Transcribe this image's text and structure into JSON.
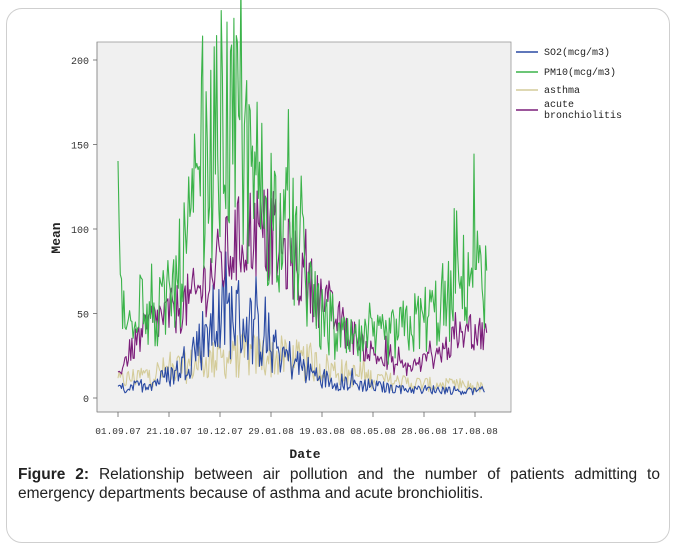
{
  "chart_data": {
    "type": "line",
    "xlabel": "Date",
    "ylabel": "Mean",
    "ylim": [
      -5,
      210
    ],
    "yticks": [
      0,
      50,
      100,
      150,
      200
    ],
    "xticks": [
      "01.09.07",
      "21.10.07",
      "10.12.07",
      "29.01.08",
      "19.03.08",
      "08.05.08",
      "28.06.08",
      "17.08.08"
    ],
    "x_range_days": [
      0,
      385
    ],
    "legend_position": "right",
    "grid": false,
    "series": [
      {
        "name": "SO2(mcg/m3)",
        "color": "#2a4aa3",
        "keypoints": [
          [
            0,
            5
          ],
          [
            20,
            7
          ],
          [
            40,
            10
          ],
          [
            60,
            15
          ],
          [
            80,
            30
          ],
          [
            100,
            45
          ],
          [
            120,
            50
          ],
          [
            140,
            40
          ],
          [
            160,
            30
          ],
          [
            180,
            22
          ],
          [
            200,
            15
          ],
          [
            220,
            10
          ],
          [
            250,
            8
          ],
          [
            280,
            6
          ],
          [
            310,
            5
          ],
          [
            340,
            5
          ],
          [
            360,
            4
          ],
          [
            380,
            4
          ]
        ]
      },
      {
        "name": "PM10(mcg/m3)",
        "color": "#3bb34a",
        "keypoints": [
          [
            0,
            120
          ],
          [
            4,
            60
          ],
          [
            8,
            35
          ],
          [
            15,
            55
          ],
          [
            25,
            70
          ],
          [
            35,
            45
          ],
          [
            50,
            55
          ],
          [
            65,
            75
          ],
          [
            80,
            110
          ],
          [
            95,
            140
          ],
          [
            110,
            165
          ],
          [
            125,
            150
          ],
          [
            140,
            130
          ],
          [
            160,
            110
          ],
          [
            175,
            95
          ],
          [
            190,
            85
          ],
          [
            205,
            50
          ],
          [
            220,
            38
          ],
          [
            240,
            32
          ],
          [
            260,
            33
          ],
          [
            280,
            35
          ],
          [
            300,
            42
          ],
          [
            320,
            48
          ],
          [
            340,
            55
          ],
          [
            360,
            70
          ],
          [
            370,
            85
          ],
          [
            375,
            95
          ],
          [
            382,
            55
          ]
        ]
      },
      {
        "name": "asthma",
        "color": "#d4cc9a",
        "keypoints": [
          [
            0,
            10
          ],
          [
            40,
            15
          ],
          [
            80,
            20
          ],
          [
            120,
            25
          ],
          [
            160,
            25
          ],
          [
            200,
            20
          ],
          [
            240,
            14
          ],
          [
            280,
            10
          ],
          [
            320,
            8
          ],
          [
            360,
            7
          ],
          [
            380,
            6
          ]
        ]
      },
      {
        "name": "acute bronchiolitis",
        "color": "#7b1e7a",
        "keypoints": [
          [
            0,
            15
          ],
          [
            15,
            30
          ],
          [
            35,
            45
          ],
          [
            55,
            50
          ],
          [
            80,
            60
          ],
          [
            100,
            75
          ],
          [
            120,
            90
          ],
          [
            140,
            100
          ],
          [
            160,
            95
          ],
          [
            180,
            80
          ],
          [
            200,
            65
          ],
          [
            220,
            50
          ],
          [
            240,
            38
          ],
          [
            260,
            28
          ],
          [
            280,
            20
          ],
          [
            300,
            18
          ],
          [
            320,
            22
          ],
          [
            340,
            30
          ],
          [
            360,
            38
          ],
          [
            370,
            40
          ],
          [
            382,
            35
          ]
        ]
      }
    ]
  },
  "caption": {
    "label": "Figure 2:",
    "text": " Relationship between air pollution and the number of patients admitting to emergency departments because of asthma and acute bronchiolitis."
  }
}
